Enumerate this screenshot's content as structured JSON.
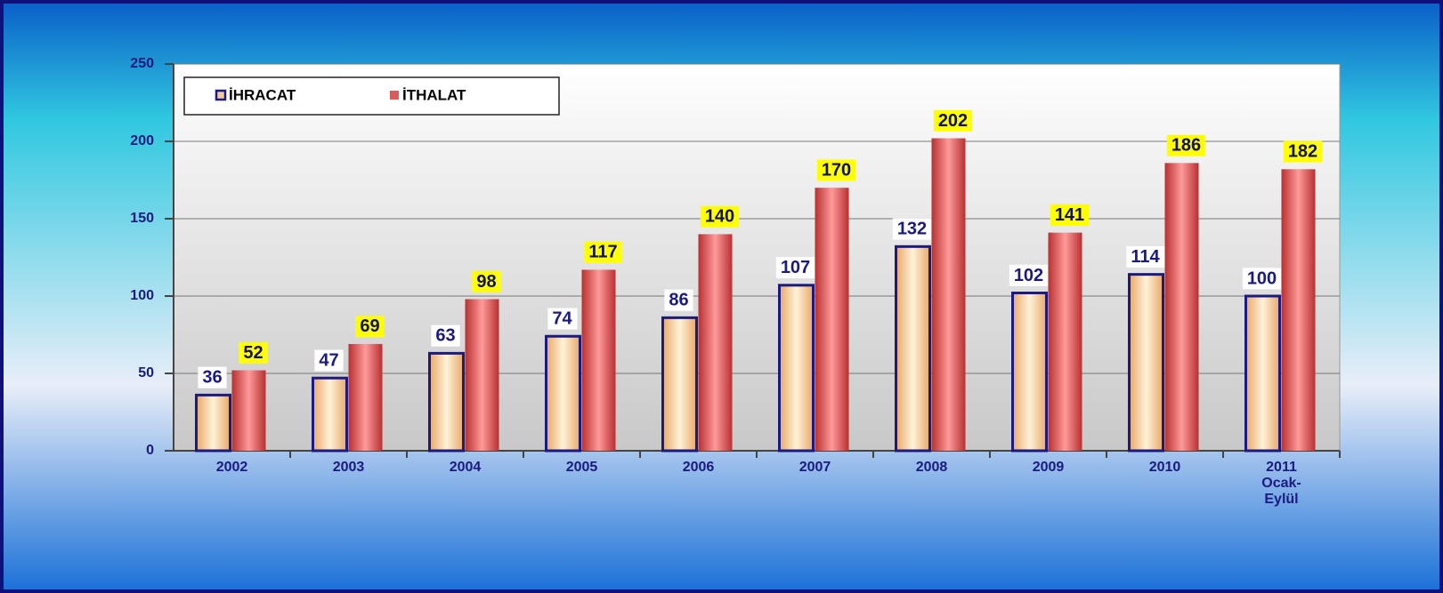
{
  "chart_data": {
    "type": "bar",
    "categories": [
      "2002",
      "2003",
      "2004",
      "2005",
      "2006",
      "2007",
      "2008",
      "2009",
      "2010",
      "2011 Ocak-Eylül"
    ],
    "series": [
      {
        "name": "İHRACAT",
        "color": "#f5c89a",
        "values": [
          36,
          47,
          63,
          74,
          86,
          107,
          132,
          102,
          114,
          100
        ]
      },
      {
        "name": "İTHALAT",
        "color": "#d95c5c",
        "values": [
          52,
          69,
          98,
          117,
          140,
          170,
          202,
          141,
          186,
          182
        ]
      }
    ],
    "ylim": [
      0,
      250
    ],
    "yticks": [
      0,
      50,
      100,
      150,
      200,
      250
    ],
    "grid": true,
    "legend": "top-left"
  }
}
